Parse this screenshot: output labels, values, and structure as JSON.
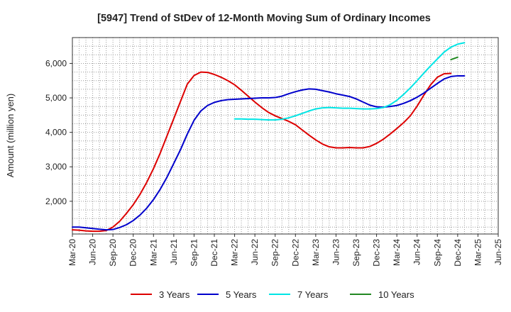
{
  "chart_data": {
    "type": "line",
    "title": "[5947]  Trend of StDev of 12-Month Moving Sum of Ordinary Incomes",
    "xlabel": "",
    "ylabel": "Amount (million yen)",
    "x_tick_labels": [
      "Mar-20",
      "Jun-20",
      "Sep-20",
      "Dec-20",
      "Mar-21",
      "Jun-21",
      "Sep-21",
      "Dec-21",
      "Mar-22",
      "Jun-22",
      "Sep-22",
      "Dec-22",
      "Mar-23",
      "Jun-23",
      "Sep-23",
      "Dec-23",
      "Mar-24",
      "Jun-24",
      "Sep-24",
      "Dec-24",
      "Mar-25",
      "Jun-25"
    ],
    "y_ticks": [
      2000,
      3000,
      4000,
      5000,
      6000
    ],
    "y_tick_labels": [
      "2,000",
      "3,000",
      "4,000",
      "5,000",
      "6,000"
    ],
    "ylim": [
      1050,
      6750
    ],
    "grid": true,
    "legend_position": "bottom",
    "series": [
      {
        "name": "3 Years",
        "color": "#dd0000",
        "start_index": 0,
        "values": [
          1170,
          1160,
          1140,
          1130,
          1130,
          1150,
          1250,
          1420,
          1650,
          1900,
          2200,
          2550,
          2950,
          3400,
          3900,
          4400,
          4900,
          5400,
          5650,
          5750,
          5740,
          5680,
          5600,
          5500,
          5380,
          5220,
          5050,
          4880,
          4720,
          4580,
          4480,
          4400,
          4320,
          4220,
          4070,
          3920,
          3780,
          3660,
          3580,
          3550,
          3550,
          3560,
          3550,
          3550,
          3590,
          3680,
          3800,
          3950,
          4110,
          4280,
          4480,
          4760,
          5080,
          5380,
          5600,
          5700,
          5710
        ]
      },
      {
        "name": "5 Years",
        "color": "#0000cc",
        "start_index": 0,
        "values": [
          1250,
          1250,
          1230,
          1210,
          1190,
          1170,
          1180,
          1240,
          1320,
          1440,
          1600,
          1800,
          2050,
          2350,
          2700,
          3100,
          3500,
          3950,
          4350,
          4620,
          4780,
          4870,
          4920,
          4950,
          4960,
          4970,
          4980,
          4990,
          5000,
          5000,
          5010,
          5050,
          5120,
          5180,
          5230,
          5260,
          5250,
          5210,
          5170,
          5120,
          5080,
          5040,
          4970,
          4880,
          4790,
          4740,
          4730,
          4750,
          4780,
          4840,
          4920,
          5020,
          5140,
          5280,
          5420,
          5550,
          5620,
          5640,
          5640
        ]
      },
      {
        "name": "7 Years",
        "color": "#00e5e5",
        "start_index": 24,
        "values": [
          4390,
          4390,
          4380,
          4380,
          4370,
          4360,
          4360,
          4380,
          4420,
          4480,
          4550,
          4620,
          4680,
          4710,
          4720,
          4710,
          4700,
          4700,
          4690,
          4680,
          4680,
          4690,
          4720,
          4800,
          4930,
          5100,
          5290,
          5500,
          5720,
          5930,
          6130,
          6330,
          6470,
          6560,
          6600
        ]
      },
      {
        "name": "10 Years",
        "color": "#228822",
        "start_index": 56,
        "values": [
          6110,
          6180
        ]
      }
    ]
  }
}
